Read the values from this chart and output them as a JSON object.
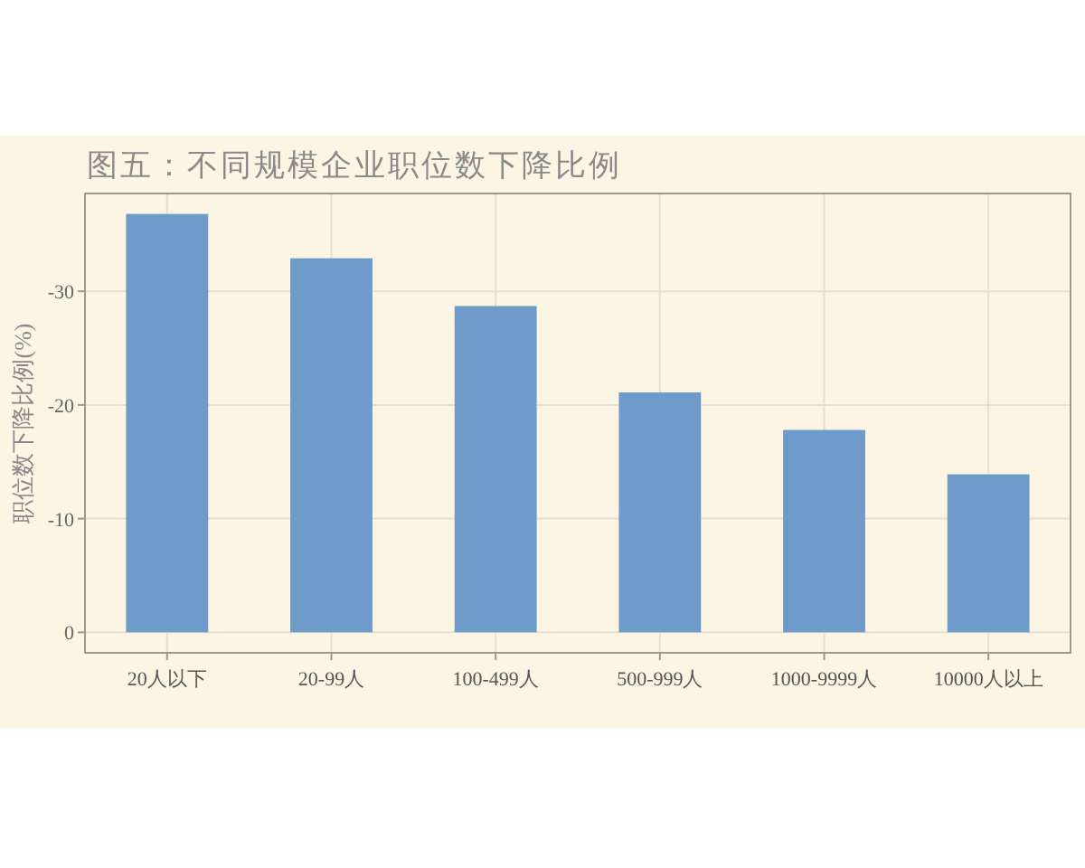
{
  "chart_data": {
    "type": "bar",
    "title": "图五：不同规模企业职位数下降比例",
    "ylabel": "职位数下降比例(%)",
    "categories": [
      "20人以下",
      "20-99人",
      "100-499人",
      "500-999人",
      "1000-9999人",
      "10000人以上"
    ],
    "values": [
      -36.8,
      -32.9,
      -28.7,
      -21.1,
      -17.8,
      -13.9
    ],
    "color": "#6f9bcb",
    "ylim": [
      1.8,
      -38.6
    ],
    "yticks": [
      -30,
      -20,
      -10,
      0
    ],
    "grid": true
  }
}
